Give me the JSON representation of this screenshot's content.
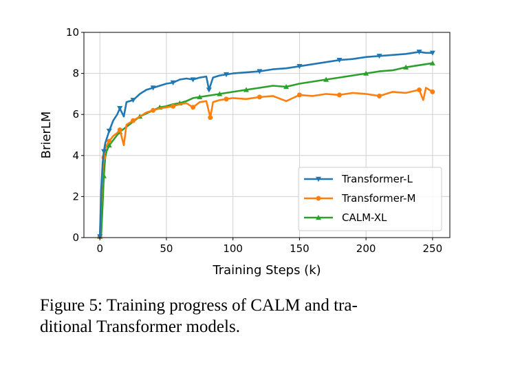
{
  "chart_data": {
    "type": "line",
    "title": "",
    "xlabel": "Training Steps (k)",
    "ylabel": "BrierLM",
    "xlim": [
      -12,
      263
    ],
    "ylim": [
      0,
      10
    ],
    "xticks": [
      0,
      50,
      100,
      150,
      200,
      250
    ],
    "yticks": [
      0,
      2,
      4,
      6,
      8,
      10
    ],
    "grid": true,
    "legend_position": "lower-right",
    "series": [
      {
        "name": "Transformer-L",
        "color": "#1f77b4",
        "marker": "triangle-down",
        "x": [
          0,
          1,
          2,
          3,
          4,
          5,
          7,
          10,
          13,
          15,
          18,
          20,
          25,
          30,
          35,
          40,
          45,
          50,
          55,
          60,
          65,
          70,
          75,
          80,
          82,
          85,
          90,
          95,
          100,
          110,
          120,
          130,
          140,
          150,
          160,
          170,
          180,
          190,
          200,
          210,
          220,
          230,
          240,
          245,
          250
        ],
        "y": [
          0.05,
          2.3,
          3.6,
          4.2,
          4.6,
          4.8,
          5.2,
          5.7,
          6.0,
          6.3,
          5.9,
          6.6,
          6.7,
          7.0,
          7.2,
          7.3,
          7.4,
          7.5,
          7.55,
          7.7,
          7.75,
          7.7,
          7.8,
          7.85,
          7.2,
          7.8,
          7.9,
          7.95,
          8.0,
          8.05,
          8.1,
          8.2,
          8.25,
          8.35,
          8.45,
          8.55,
          8.65,
          8.7,
          8.8,
          8.85,
          8.9,
          8.95,
          9.05,
          9.0,
          9.0
        ]
      },
      {
        "name": "Transformer-M",
        "color": "#ff7f0e",
        "marker": "circle",
        "x": [
          0,
          1,
          2,
          3,
          4,
          5,
          7,
          10,
          13,
          15,
          18,
          20,
          25,
          30,
          35,
          40,
          45,
          50,
          55,
          60,
          65,
          70,
          75,
          80,
          83,
          85,
          90,
          95,
          100,
          110,
          120,
          130,
          140,
          150,
          160,
          170,
          180,
          190,
          200,
          210,
          220,
          230,
          240,
          243,
          245,
          250
        ],
        "y": [
          0.05,
          2.0,
          3.3,
          3.9,
          4.3,
          4.5,
          4.7,
          4.95,
          5.1,
          5.25,
          4.5,
          5.5,
          5.7,
          5.9,
          6.1,
          6.2,
          6.3,
          6.35,
          6.4,
          6.5,
          6.55,
          6.35,
          6.6,
          6.65,
          5.85,
          6.6,
          6.7,
          6.75,
          6.8,
          6.75,
          6.85,
          6.9,
          6.65,
          6.95,
          6.9,
          7.0,
          6.95,
          7.05,
          7.0,
          6.9,
          7.1,
          7.05,
          7.2,
          6.7,
          7.3,
          7.1
        ]
      },
      {
        "name": "CALM-XL",
        "color": "#2ca02c",
        "marker": "triangle-up",
        "x": [
          0,
          1,
          2,
          3,
          4,
          5,
          7,
          10,
          13,
          15,
          20,
          25,
          30,
          35,
          40,
          45,
          50,
          55,
          60,
          65,
          70,
          75,
          80,
          85,
          90,
          95,
          100,
          110,
          120,
          130,
          140,
          150,
          160,
          170,
          180,
          190,
          200,
          210,
          220,
          230,
          240,
          245,
          250
        ],
        "y": [
          0.05,
          0.1,
          1.5,
          3.0,
          3.9,
          4.2,
          4.5,
          4.75,
          5.0,
          5.15,
          5.4,
          5.65,
          5.9,
          6.05,
          6.2,
          6.35,
          6.4,
          6.5,
          6.55,
          6.65,
          6.8,
          6.85,
          6.9,
          6.95,
          7.0,
          7.05,
          7.1,
          7.2,
          7.3,
          7.4,
          7.35,
          7.5,
          7.6,
          7.7,
          7.8,
          7.9,
          8.0,
          8.1,
          8.15,
          8.3,
          8.4,
          8.45,
          8.5
        ]
      }
    ]
  },
  "caption": {
    "line1": "Figure 5: Training progress of CALM and tra-",
    "line2": "ditional Transformer models."
  }
}
